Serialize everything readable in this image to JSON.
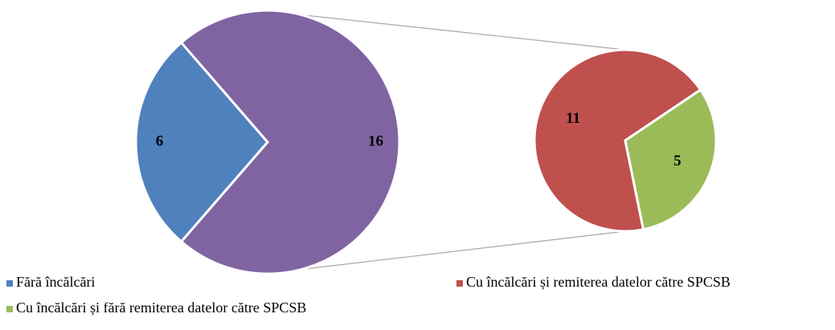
{
  "chart_data": {
    "type": "pie-of-pie",
    "main": {
      "categories": [
        "Fără încălcări",
        null
      ],
      "values": [
        6,
        16
      ],
      "colors": [
        "#4f81bd",
        "#8064a2"
      ]
    },
    "secondary": {
      "categories": [
        "Cu încălcări și remiterea datelor către SPCSB",
        "Cu încălcări și fără remiterea datelor către SPCSB"
      ],
      "values": [
        11,
        5
      ],
      "colors": [
        "#c0504d",
        "#9bbb59"
      ]
    }
  }
}
